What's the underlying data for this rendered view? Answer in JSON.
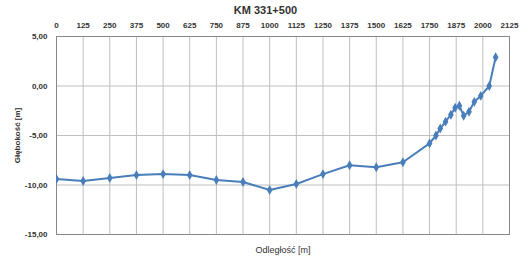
{
  "chart_data": {
    "type": "line",
    "title": "KM 331+500",
    "x_label": "Odległość [m]",
    "y_label": "Głębokość [m]",
    "x": [
      0,
      125,
      250,
      375,
      500,
      625,
      750,
      875,
      1000,
      1125,
      1250,
      1375,
      1500,
      1625,
      1750,
      1780,
      1800,
      1825,
      1850,
      1870,
      1890,
      1910,
      1935,
      1960,
      1990,
      2030,
      2060
    ],
    "values": [
      -9.4,
      -9.6,
      -9.3,
      -9.0,
      -8.9,
      -9.0,
      -9.5,
      -9.7,
      -10.5,
      -9.9,
      -8.9,
      -8.0,
      -8.2,
      -7.7,
      -5.8,
      -5.0,
      -4.3,
      -3.6,
      -2.9,
      -2.2,
      -2.0,
      -3.0,
      -2.6,
      -1.6,
      -1.0,
      0.0,
      2.9
    ],
    "color": "#4a7ebb",
    "marker": "diamond",
    "xlim": [
      0,
      2125
    ],
    "xticks": [
      0,
      125,
      250,
      375,
      500,
      625,
      750,
      875,
      1000,
      1125,
      1250,
      1375,
      1500,
      1625,
      1750,
      1875,
      2000,
      2125
    ],
    "ylim": [
      -15,
      5
    ],
    "yticks": [
      {
        "value": 5,
        "label": "5,00"
      },
      {
        "value": 0,
        "label": "0,00"
      },
      {
        "value": -5,
        "label": "-5,00"
      },
      {
        "value": -10,
        "label": "-10,00"
      },
      {
        "value": -15,
        "label": "-15,00"
      }
    ],
    "grid": true
  }
}
